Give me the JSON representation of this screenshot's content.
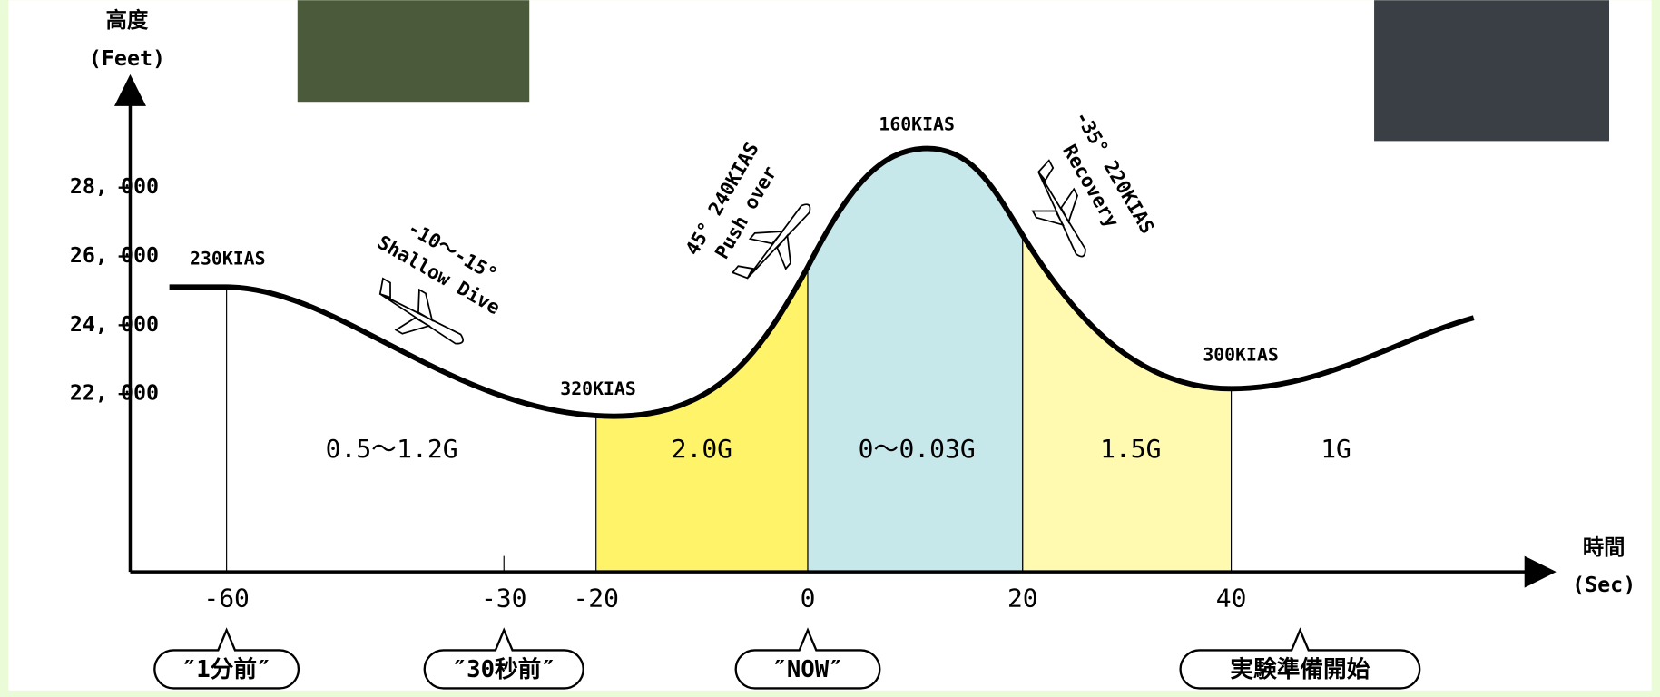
{
  "axes": {
    "y_label": [
      "高度",
      "(Feet)"
    ],
    "x_label": [
      "時間",
      "(Sec)"
    ],
    "y_ticks": [
      "28, 000",
      "26, 000",
      "24, 000",
      "22, 000"
    ],
    "x_ticks": [
      "-60",
      "-30",
      "-20",
      "0",
      "20",
      "40"
    ]
  },
  "speeds": [
    "230KIAS",
    "320KIAS",
    "160KIAS",
    "300KIAS"
  ],
  "phases": [
    "0.5～1.2G",
    "2.0G",
    "0～0.03G",
    "1.5G",
    "1G"
  ],
  "annotations": [
    [
      "-10～-15°",
      "Shallow Dive"
    ],
    [
      "45° 240KIAS",
      "Push over"
    ],
    [
      "-35° 220KIAS",
      "Recovery"
    ]
  ],
  "callouts": [
    "″1分前″",
    "″30秒前″",
    "″NOW″",
    "実験準備開始"
  ]
}
